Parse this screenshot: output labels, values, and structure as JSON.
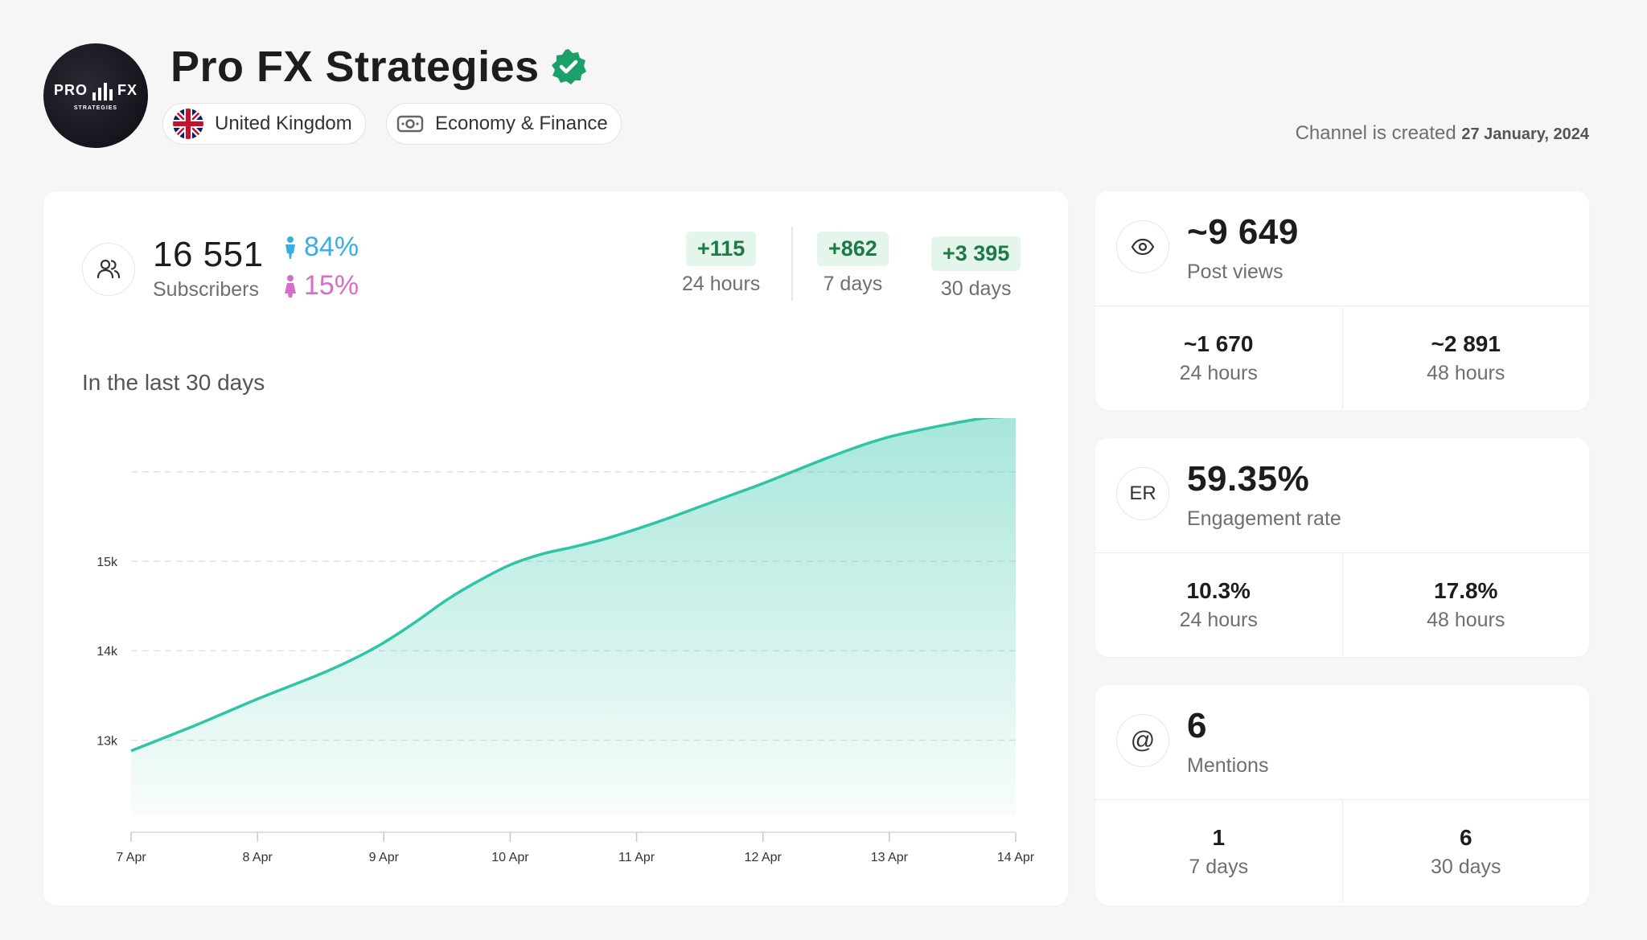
{
  "channel": {
    "name": "Pro FX Strategies",
    "avatar_text_left": "PRO",
    "avatar_text_right": "FX",
    "avatar_subtext": "STRATEGIES",
    "country": "United Kingdom",
    "category": "Economy & Finance",
    "created_label": "Channel is created",
    "created_date": "27 January, 2024"
  },
  "subscribers": {
    "value": "16 551",
    "label": "Subscribers",
    "male_pct": "84%",
    "female_pct": "15%",
    "deltas": [
      {
        "value": "+115",
        "label": "24 hours"
      },
      {
        "value": "+862",
        "label": "7 days"
      },
      {
        "value": "+3 395",
        "label": "30 days"
      }
    ]
  },
  "chart_title": "In the last 30 days",
  "chart_data": {
    "type": "area",
    "categories": [
      "7 Apr",
      "8 Apr",
      "9 Apr",
      "10 Apr",
      "11 Apr",
      "12 Apr",
      "13 Apr",
      "14 Apr"
    ],
    "y_ticks": [
      "13k",
      "14k",
      "15k"
    ],
    "ylim": [
      12150,
      16600
    ],
    "x": [
      0,
      0.25,
      0.5,
      0.75,
      1,
      1.25,
      1.5,
      1.75,
      2,
      2.25,
      2.5,
      2.75,
      3,
      3.25,
      3.5,
      3.75,
      4,
      4.25,
      4.5,
      4.75,
      5,
      5.25,
      5.5,
      5.75,
      6,
      6.25,
      6.5,
      6.75,
      7
    ],
    "values": [
      12880,
      13020,
      13160,
      13310,
      13460,
      13600,
      13740,
      13900,
      14090,
      14320,
      14570,
      14780,
      14960,
      15080,
      15160,
      15250,
      15360,
      15480,
      15610,
      15740,
      15870,
      16010,
      16150,
      16280,
      16390,
      16470,
      16540,
      16600,
      16620
    ],
    "color": "#2ec4a6"
  },
  "post_views": {
    "value": "~9 649",
    "label": "Post views",
    "cells": [
      {
        "value": "~1 670",
        "label": "24 hours"
      },
      {
        "value": "~2 891",
        "label": "48 hours"
      }
    ]
  },
  "engagement": {
    "icon_text": "ER",
    "value": "59.35%",
    "label": "Engagement rate",
    "cells": [
      {
        "value": "10.3%",
        "label": "24 hours"
      },
      {
        "value": "17.8%",
        "label": "48 hours"
      }
    ]
  },
  "mentions": {
    "value": "6",
    "label": "Mentions",
    "cells": [
      {
        "value": "1",
        "label": "7 days"
      },
      {
        "value": "6",
        "label": "30 days"
      }
    ]
  },
  "colors": {
    "male": "#3aaee0",
    "female": "#d66ccc",
    "delta_bg": "#e4f5ec",
    "delta_text": "#1b7a48",
    "verified": "#1ba06a"
  }
}
